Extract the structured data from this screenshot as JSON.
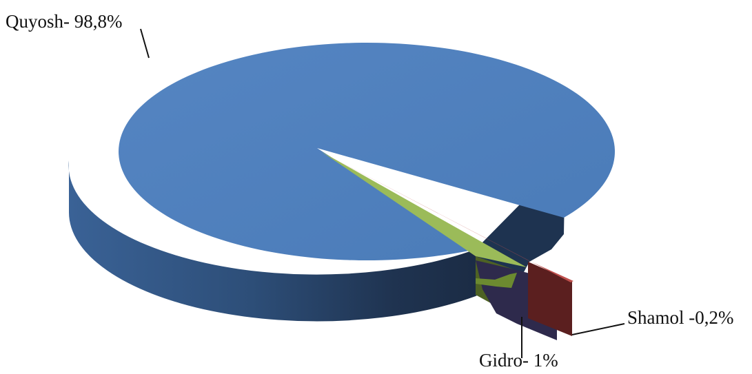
{
  "chart_data": {
    "type": "pie",
    "style": "3d-exploded",
    "title": "",
    "slices": [
      {
        "name": "Quyosh",
        "value": 98.8,
        "label": "Quyosh- 98,8%",
        "color": "#4F81BD",
        "exploded": false
      },
      {
        "name": "Gidro",
        "value": 1.0,
        "label": "Gidro- 1%",
        "color": "#9BBB59",
        "exploded": true
      },
      {
        "name": "Shamol",
        "value": 0.2,
        "label": "Shamol -0,2%",
        "color": "#C0504D",
        "exploded": true
      }
    ],
    "legend": "none",
    "data_labels": "outside-with-leader-lines"
  }
}
